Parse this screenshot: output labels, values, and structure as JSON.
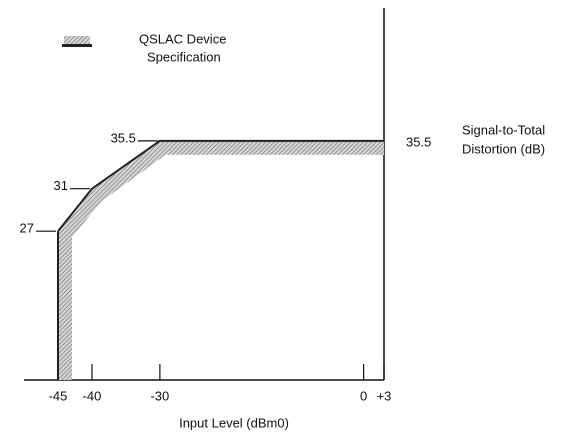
{
  "chart_data": {
    "type": "line",
    "xlabel": "Input Level (dBm0)",
    "ylabel": [
      "Signal-to-Total",
      "Distortion (dB)"
    ],
    "x": [
      -45,
      -40,
      -30,
      3
    ],
    "series": [
      {
        "name": [
          "QSLAC Device",
          "Specification"
        ],
        "color": "#222222",
        "values": [
          27,
          31,
          35.5,
          35.5
        ]
      }
    ],
    "xlim": [
      -45,
      3
    ],
    "xticks": [
      -45,
      -40,
      -30,
      0,
      {
        "value": 3,
        "label": "+3"
      }
    ],
    "ylim": [
      13,
      48
    ],
    "yticks": [
      27,
      31,
      35.5
    ]
  }
}
